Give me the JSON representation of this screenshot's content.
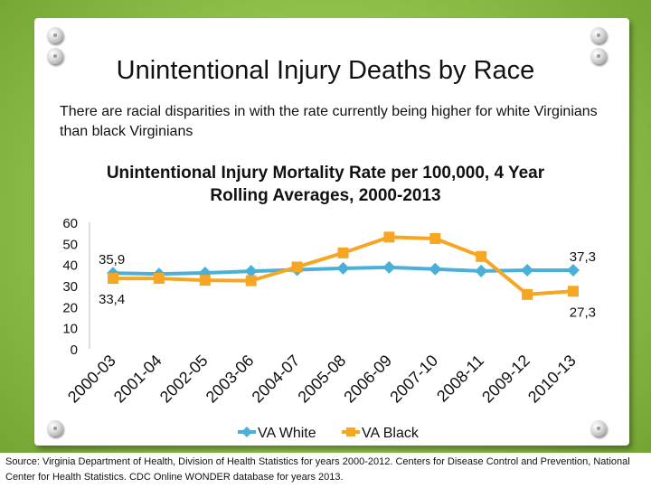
{
  "slide": {
    "title": "Unintentional Injury Deaths by Race",
    "subtitle": "There are racial disparities in with the rate currently being higher for white Virginians than black Virginians",
    "source": "Source: Virginia Department of Health, Division of Health Statistics for years 2000-2012. Centers for Disease Control and Prevention, National Center for Health Statistics. CDC Online WONDER database for years 2013."
  },
  "chart_data": {
    "type": "line",
    "title": "Unintentional Injury Mortality Rate per 100,000, 4 Year Rolling Averages, 2000-2013",
    "categories": [
      "2000-03",
      "2001-04",
      "2002-05",
      "2003-06",
      "2004-07",
      "2005-08",
      "2006-09",
      "2007-10",
      "2008-11",
      "2009-12",
      "2010-13"
    ],
    "ylim": [
      0,
      60
    ],
    "yticks": [
      0,
      10,
      20,
      30,
      40,
      50,
      60
    ],
    "grid": false,
    "legend": "bottom",
    "series": [
      {
        "name": "VA White",
        "color": "#4ab0d8",
        "marker": "diamond",
        "values": [
          35.9,
          35.5,
          36.0,
          36.8,
          37.5,
          38.2,
          38.6,
          37.8,
          36.9,
          37.3,
          37.3
        ],
        "labels": [
          {
            "index": 0,
            "text": "35,9",
            "pos": "above"
          },
          {
            "index": 10,
            "text": "37,3",
            "pos": "above"
          }
        ]
      },
      {
        "name": "VA Black",
        "color": "#f5a623",
        "marker": "square",
        "values": [
          33.4,
          33.4,
          32.5,
          32.3,
          38.8,
          45.5,
          53.0,
          52.3,
          43.8,
          25.8,
          27.3
        ],
        "labels": [
          {
            "index": 0,
            "text": "33,4",
            "pos": "below"
          },
          {
            "index": 10,
            "text": "27,3",
            "pos": "below"
          }
        ]
      }
    ]
  }
}
